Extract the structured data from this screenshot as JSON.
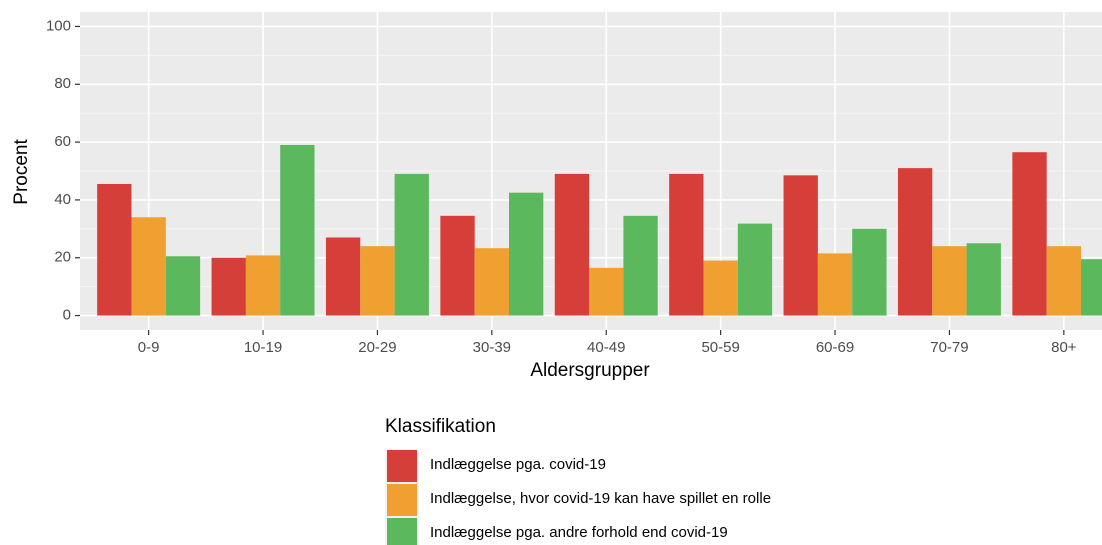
{
  "chart_data": {
    "type": "bar",
    "x_label": "Aldersgrupper",
    "y_label": "Procent",
    "categories": [
      "0-9",
      "10-19",
      "20-29",
      "30-39",
      "40-49",
      "50-59",
      "60-69",
      "70-79",
      "80+"
    ],
    "series": [
      {
        "name": "Indlæggelse pga. covid-19",
        "color": "#d63e3a",
        "values": [
          45.5,
          20,
          27,
          34.5,
          49,
          49,
          48.5,
          51,
          56.5
        ]
      },
      {
        "name": "Indlæggelse, hvor covid-19 kan have spillet en rolle",
        "color": "#f0a030",
        "values": [
          34,
          20.8,
          24,
          23.3,
          16.5,
          19,
          21.5,
          24,
          24
        ]
      },
      {
        "name": "Indlæggelse pga. andre forhold end covid-19",
        "color": "#5cb85c",
        "values": [
          20.5,
          59,
          49,
          42.5,
          34.5,
          31.8,
          30,
          25,
          19.5
        ]
      }
    ],
    "legend_title": "Klassifikation",
    "legend_position": "bottom",
    "ylim": [
      -5,
      105
    ],
    "yticks": [
      0,
      20,
      40,
      60,
      80,
      100
    ],
    "grid": true
  }
}
